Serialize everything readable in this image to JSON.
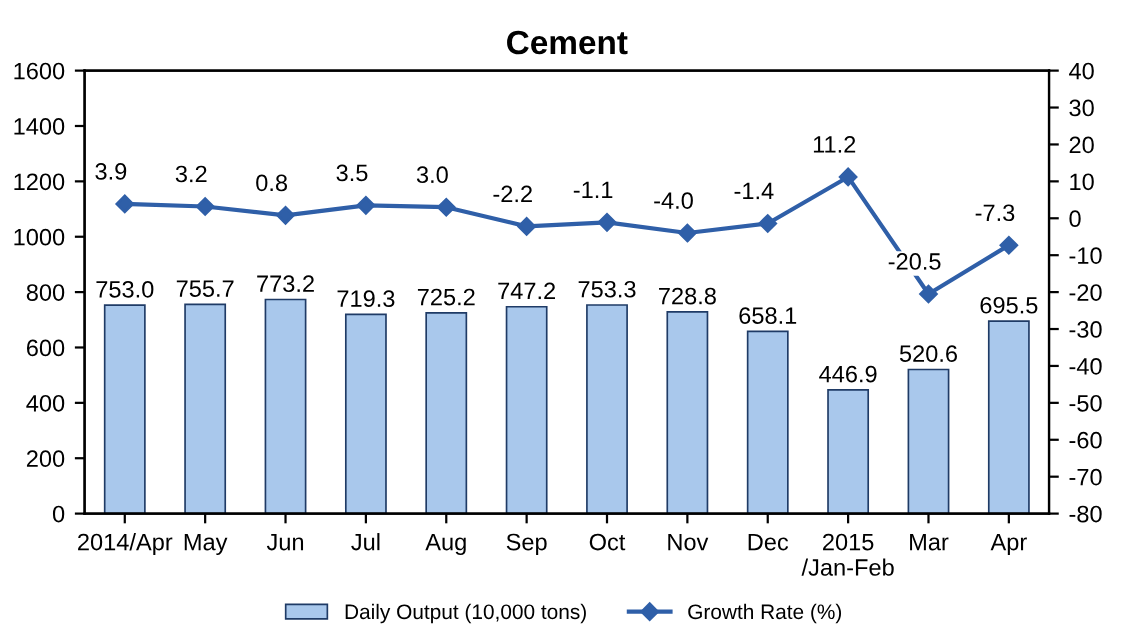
{
  "chart_data": {
    "type": "bar",
    "title": "Cement",
    "categories": [
      "2014/Apr",
      "May",
      "Jun",
      "Jul",
      "Aug",
      "Sep",
      "Oct",
      "Nov",
      "Dec",
      "2015\n/Jan-Feb",
      "Mar",
      "Apr"
    ],
    "series": [
      {
        "name": "Daily Output (10,000 tons)",
        "color": "#a9c8ec",
        "values": [
          753.0,
          755.7,
          773.2,
          719.3,
          725.2,
          747.2,
          753.3,
          728.8,
          658.1,
          446.9,
          520.6,
          695.5
        ],
        "value_labels": [
          "753.0",
          "755.7",
          "773.2",
          "719.3",
          "725.2",
          "747.2",
          "753.3",
          "728.8",
          "658.1",
          "446.9",
          "520.6",
          "695.5"
        ]
      },
      {
        "name": "Growth Rate (%)",
        "type": "line",
        "axis": "y2",
        "color": "#2f5fa8",
        "marker": "diamond",
        "values": [
          3.9,
          3.2,
          0.8,
          3.5,
          3.0,
          -2.2,
          -1.1,
          -4.0,
          -1.4,
          11.2,
          -20.5,
          -7.3
        ],
        "value_labels": [
          "3.9",
          "3.2",
          "0.8",
          "3.5",
          "3.0",
          "-2.2",
          "-1.1",
          "-4.0",
          "-1.4",
          "11.2",
          "-20.5",
          "-7.3"
        ]
      }
    ],
    "ylim": [
      0,
      1600
    ],
    "yticks": [
      0,
      200,
      400,
      600,
      800,
      1000,
      1200,
      1400,
      1600
    ],
    "y2lim": [
      -80,
      40
    ],
    "y2ticks": [
      -80,
      -70,
      -60,
      -50,
      -40,
      -30,
      -20,
      -10,
      0,
      10,
      20,
      30,
      40
    ],
    "grid": false,
    "legend": "bottom"
  }
}
